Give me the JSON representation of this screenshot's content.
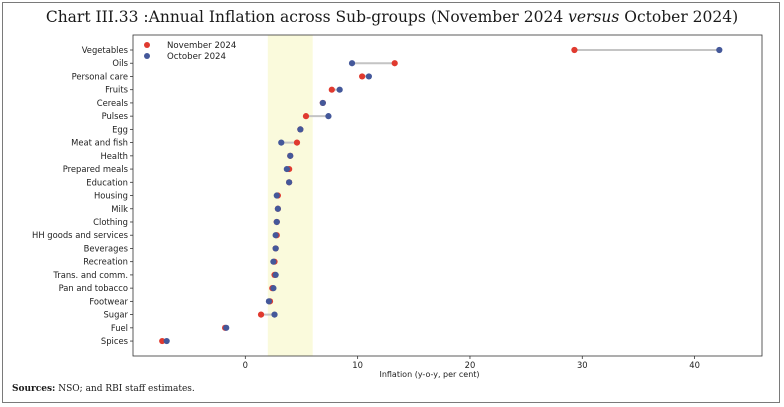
{
  "title": {
    "main": "Chart III.33 :Annual Inflation across Sub-groups (November 2024 ",
    "emph": "versus",
    "tail": " October 2024)"
  },
  "source": {
    "label": "Sources:",
    "text": " NSO; and RBI staff estimates."
  },
  "chart_data": {
    "type": "dumbbell",
    "title": "Chart III.33 :Annual Inflation across Sub-groups (November 2024 versus October 2024)",
    "xlabel": "Inflation (y-o-y, per cent)",
    "ylabel": "",
    "xlim": [
      -10,
      46
    ],
    "xticks": [
      0,
      10,
      20,
      30,
      40
    ],
    "shaded_band": [
      2,
      6
    ],
    "shaded_color": "#fafadc",
    "legend_position": "top-left",
    "categories": [
      "Vegetables",
      "Oils",
      "Personal care",
      "Fruits",
      "Cereals",
      "Pulses",
      "Egg",
      "Meat and fish",
      "Health",
      "Prepared meals",
      "Education",
      "Housing",
      "Milk",
      "Clothing",
      "HH goods and services",
      "Beverages",
      "Recreation",
      "Trans. and comm.",
      "Pan and tobacco",
      "Footwear",
      "Sugar",
      "Fuel",
      "Spices"
    ],
    "series": [
      {
        "name": "November 2024",
        "color": "#e03a2f",
        "values": [
          29.3,
          13.3,
          10.4,
          7.7,
          6.9,
          5.4,
          4.9,
          4.6,
          4.0,
          3.9,
          3.9,
          2.9,
          2.9,
          2.8,
          2.8,
          2.7,
          2.6,
          2.6,
          2.4,
          2.2,
          1.4,
          -1.8,
          -7.4
        ]
      },
      {
        "name": "October 2024",
        "color": "#44589a",
        "values": [
          42.2,
          9.5,
          11.0,
          8.4,
          6.9,
          7.4,
          4.9,
          3.2,
          4.0,
          3.7,
          3.9,
          2.8,
          2.9,
          2.8,
          2.7,
          2.7,
          2.5,
          2.7,
          2.5,
          2.1,
          2.6,
          -1.7,
          -7.0
        ]
      }
    ]
  }
}
